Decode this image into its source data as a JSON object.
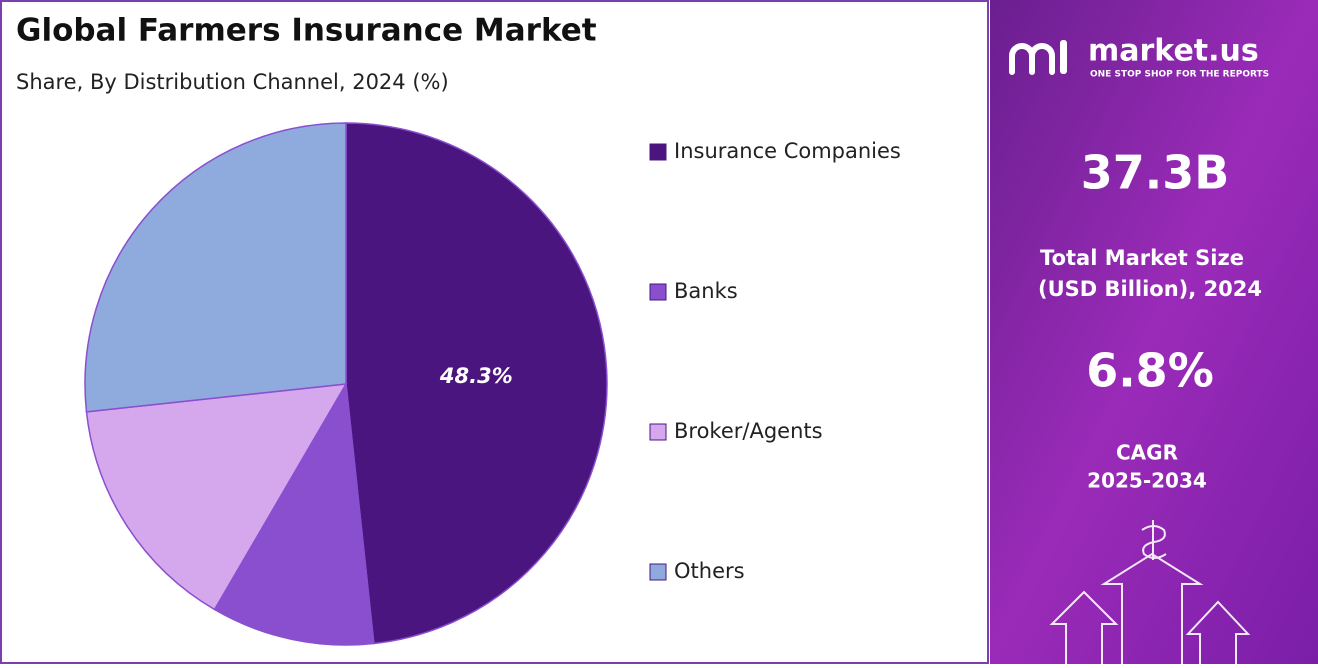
{
  "chart_data": {
    "type": "pie",
    "title": "Global Farmers Insurance Market",
    "subtitle": "Share, By Distribution Channel, 2024 (%)",
    "categories": [
      "Insurance Companies",
      "Banks",
      "Broker/Agents",
      "Others"
    ],
    "values": [
      48.3,
      10.1,
      14.9,
      26.7
    ],
    "value_labels": [
      "48.3%",
      null,
      null,
      null
    ],
    "colors": [
      "#4b1580",
      "#8a4fcf",
      "#d5a8ee",
      "#8faadc"
    ]
  },
  "panel": {
    "brand": "market.us",
    "tagline": "ONE STOP SHOP FOR THE REPORTS",
    "market_size": "37.3B",
    "market_size_label": [
      "Total Market Size",
      "(USD Billion), 2024"
    ],
    "cagr": "6.8%",
    "cagr_label": [
      "CAGR",
      "2025-2034"
    ]
  }
}
